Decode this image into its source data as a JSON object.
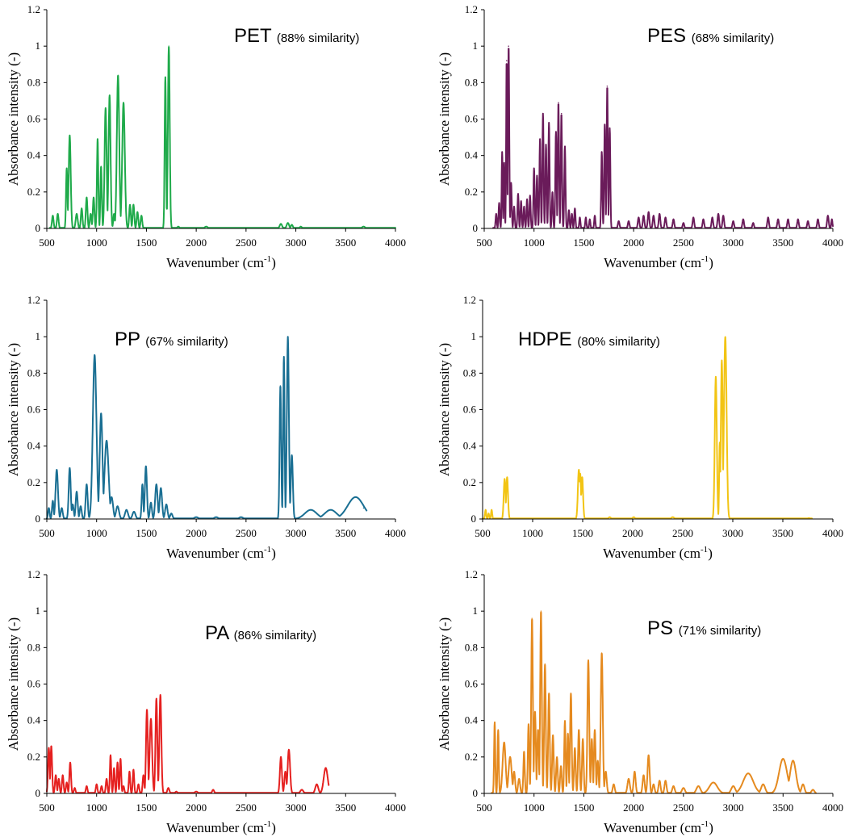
{
  "chart_data": [
    {
      "type": "line",
      "polymer": "PET",
      "similarity": "(88% similarity)",
      "color": "#1faa4a",
      "xlabel": "Wavenumber (cm",
      "xlabel_sup": "-1",
      "xlabel_close": ")",
      "ylabel": "Absorbance intensity (-)",
      "xlim": [
        500,
        4000
      ],
      "ylim": [
        0,
        1.2
      ],
      "xticks": [
        500,
        1000,
        1500,
        2000,
        2500,
        3000,
        3500,
        4000
      ],
      "yticks": [
        0,
        0.2,
        0.4,
        0.6,
        0.8,
        1,
        1.2
      ],
      "peaks": [
        [
          560,
          0.07,
          8
        ],
        [
          610,
          0.08,
          8
        ],
        [
          700,
          0.33,
          7
        ],
        [
          730,
          0.51,
          10
        ],
        [
          800,
          0.08,
          10
        ],
        [
          850,
          0.11,
          8
        ],
        [
          900,
          0.17,
          8
        ],
        [
          940,
          0.08,
          8
        ],
        [
          970,
          0.17,
          8
        ],
        [
          1010,
          0.49,
          7
        ],
        [
          1045,
          0.34,
          7
        ],
        [
          1090,
          0.66,
          10
        ],
        [
          1130,
          0.73,
          10
        ],
        [
          1175,
          0.08,
          8
        ],
        [
          1215,
          0.84,
          12
        ],
        [
          1270,
          0.69,
          13
        ],
        [
          1335,
          0.13,
          8
        ],
        [
          1370,
          0.13,
          8
        ],
        [
          1410,
          0.09,
          8
        ],
        [
          1450,
          0.07,
          8
        ],
        [
          1690,
          0.83,
          7
        ],
        [
          1725,
          1.0,
          9
        ],
        [
          1820,
          0.01,
          10
        ],
        [
          2100,
          0.01,
          15
        ],
        [
          2850,
          0.025,
          12
        ],
        [
          2920,
          0.03,
          12
        ],
        [
          2960,
          0.02,
          10
        ],
        [
          3050,
          0.01,
          10
        ],
        [
          3680,
          0.01,
          15
        ]
      ]
    },
    {
      "type": "line",
      "polymer": "PES",
      "similarity": "(68% similarity)",
      "color": "#6a1b5a",
      "xlabel": "Wavenumber (cm",
      "xlabel_sup": "-1",
      "xlabel_close": ")",
      "ylabel": "Absorbance intensity (-)",
      "xlim": [
        500,
        4000
      ],
      "ylim": [
        0,
        1.2
      ],
      "xticks": [
        500,
        1000,
        1500,
        2000,
        2500,
        3000,
        3500,
        4000
      ],
      "yticks": [
        0,
        0.2,
        0.4,
        0.6,
        0.8,
        1,
        1.2
      ],
      "peaks": [
        [
          620,
          0.08,
          6
        ],
        [
          650,
          0.14,
          6
        ],
        [
          680,
          0.42,
          5
        ],
        [
          700,
          0.36,
          5
        ],
        [
          725,
          0.92,
          5
        ],
        [
          745,
          1.0,
          6
        ],
        [
          770,
          0.25,
          6
        ],
        [
          800,
          0.12,
          6
        ],
        [
          840,
          0.19,
          6
        ],
        [
          870,
          0.15,
          6
        ],
        [
          900,
          0.12,
          6
        ],
        [
          930,
          0.16,
          6
        ],
        [
          960,
          0.18,
          6
        ],
        [
          1000,
          0.33,
          6
        ],
        [
          1030,
          0.29,
          6
        ],
        [
          1060,
          0.49,
          6
        ],
        [
          1090,
          0.63,
          6
        ],
        [
          1120,
          0.46,
          6
        ],
        [
          1150,
          0.58,
          6
        ],
        [
          1185,
          0.2,
          6
        ],
        [
          1220,
          0.53,
          6
        ],
        [
          1245,
          0.69,
          6
        ],
        [
          1275,
          0.63,
          6
        ],
        [
          1310,
          0.45,
          6
        ],
        [
          1350,
          0.1,
          6
        ],
        [
          1380,
          0.08,
          6
        ],
        [
          1410,
          0.11,
          6
        ],
        [
          1460,
          0.06,
          6
        ],
        [
          1520,
          0.06,
          6
        ],
        [
          1560,
          0.05,
          6
        ],
        [
          1610,
          0.07,
          6
        ],
        [
          1680,
          0.42,
          6
        ],
        [
          1710,
          0.57,
          6
        ],
        [
          1735,
          0.78,
          6
        ],
        [
          1760,
          0.55,
          6
        ],
        [
          1850,
          0.04,
          8
        ],
        [
          1950,
          0.04,
          8
        ],
        [
          2050,
          0.06,
          8
        ],
        [
          2100,
          0.07,
          8
        ],
        [
          2150,
          0.09,
          8
        ],
        [
          2200,
          0.07,
          8
        ],
        [
          2260,
          0.08,
          8
        ],
        [
          2320,
          0.06,
          8
        ],
        [
          2400,
          0.05,
          8
        ],
        [
          2500,
          0.03,
          8
        ],
        [
          2600,
          0.06,
          8
        ],
        [
          2700,
          0.05,
          8
        ],
        [
          2790,
          0.06,
          8
        ],
        [
          2850,
          0.08,
          8
        ],
        [
          2900,
          0.07,
          8
        ],
        [
          3000,
          0.04,
          8
        ],
        [
          3100,
          0.05,
          8
        ],
        [
          3200,
          0.03,
          8
        ],
        [
          3350,
          0.06,
          8
        ],
        [
          3450,
          0.05,
          8
        ],
        [
          3550,
          0.05,
          8
        ],
        [
          3650,
          0.05,
          8
        ],
        [
          3750,
          0.04,
          8
        ],
        [
          3850,
          0.05,
          8
        ],
        [
          3950,
          0.07,
          8
        ],
        [
          3990,
          0.05,
          6
        ]
      ]
    },
    {
      "type": "line",
      "polymer": "PP",
      "similarity": "(67% similarity)",
      "color": "#1a6f93",
      "xlabel": "Wavenumber (cm",
      "xlabel_sup": "-1",
      "xlabel_close": ")",
      "ylabel": "Absorbance intensity (-)",
      "xlim": [
        500,
        4000
      ],
      "ylim": [
        0,
        1.2
      ],
      "xticks": [
        500,
        1000,
        1500,
        2000,
        2500,
        3000,
        3500,
        4000
      ],
      "yticks": [
        0,
        0.2,
        0.4,
        0.6,
        0.8,
        1,
        1.2
      ],
      "peaks": [
        [
          520,
          0.06,
          8
        ],
        [
          560,
          0.1,
          8
        ],
        [
          600,
          0.27,
          12
        ],
        [
          650,
          0.06,
          10
        ],
        [
          730,
          0.28,
          10
        ],
        [
          760,
          0.08,
          10
        ],
        [
          800,
          0.15,
          10
        ],
        [
          840,
          0.07,
          10
        ],
        [
          900,
          0.19,
          10
        ],
        [
          980,
          0.9,
          18
        ],
        [
          1045,
          0.58,
          14
        ],
        [
          1100,
          0.43,
          20
        ],
        [
          1150,
          0.12,
          15
        ],
        [
          1210,
          0.07,
          15
        ],
        [
          1300,
          0.05,
          15
        ],
        [
          1375,
          0.04,
          15
        ],
        [
          1460,
          0.19,
          8
        ],
        [
          1495,
          0.29,
          10
        ],
        [
          1545,
          0.09,
          10
        ],
        [
          1600,
          0.19,
          12
        ],
        [
          1645,
          0.17,
          12
        ],
        [
          1700,
          0.08,
          12
        ],
        [
          1750,
          0.03,
          12
        ],
        [
          2000,
          0.01,
          20
        ],
        [
          2200,
          0.01,
          20
        ],
        [
          2450,
          0.01,
          20
        ],
        [
          2845,
          0.73,
          8
        ],
        [
          2880,
          0.89,
          7
        ],
        [
          2920,
          1.0,
          10
        ],
        [
          2960,
          0.35,
          10
        ],
        [
          3150,
          0.05,
          60
        ],
        [
          3350,
          0.05,
          60
        ],
        [
          3600,
          0.12,
          80
        ],
        [
          3680,
          0.06,
          15
        ]
      ]
    },
    {
      "type": "line",
      "polymer": "HDPE",
      "similarity": "(80% similarity)",
      "color": "#f2c414",
      "xlabel": "Wavenumber (cm",
      "xlabel_sup": "-1",
      "xlabel_close": ")",
      "ylabel": "Absorbance intensity (-)",
      "xlim": [
        500,
        4000
      ],
      "ylim": [
        0,
        1.2
      ],
      "xticks": [
        500,
        1000,
        1500,
        2000,
        2500,
        3000,
        3500,
        4000
      ],
      "yticks": [
        0,
        0.2,
        0.4,
        0.6,
        0.8,
        1,
        1.2
      ],
      "peaks": [
        [
          530,
          0.05,
          6
        ],
        [
          560,
          0.03,
          6
        ],
        [
          590,
          0.05,
          6
        ],
        [
          720,
          0.22,
          9
        ],
        [
          745,
          0.23,
          9
        ],
        [
          1462,
          0.27,
          10
        ],
        [
          1475,
          0.25,
          8
        ],
        [
          1495,
          0.23,
          9
        ],
        [
          1770,
          0.01,
          12
        ],
        [
          2010,
          0.01,
          12
        ],
        [
          2400,
          0.01,
          15
        ],
        [
          2830,
          0.78,
          10
        ],
        [
          2870,
          0.42,
          6
        ],
        [
          2890,
          0.87,
          9
        ],
        [
          2925,
          1.0,
          13
        ],
        [
          3760,
          0.005,
          15
        ]
      ]
    },
    {
      "type": "line",
      "polymer": "PA",
      "similarity": "(86% similarity)",
      "color": "#e5201f",
      "xlabel": "Wavenumber (cm",
      "xlabel_sup": "-1",
      "xlabel_close": ")",
      "ylabel": "Absorbance intensity (-)",
      "xlim": [
        500,
        4000
      ],
      "ylim": [
        0,
        1.2
      ],
      "xticks": [
        500,
        1000,
        1500,
        2000,
        2500,
        3000,
        3500,
        4000
      ],
      "yticks": [
        0,
        0.2,
        0.4,
        0.6,
        0.8,
        1,
        1.2
      ],
      "peaks": [
        [
          520,
          0.25,
          8
        ],
        [
          545,
          0.26,
          8
        ],
        [
          590,
          0.1,
          8
        ],
        [
          620,
          0.08,
          8
        ],
        [
          660,
          0.1,
          8
        ],
        [
          700,
          0.06,
          8
        ],
        [
          735,
          0.17,
          8
        ],
        [
          780,
          0.03,
          8
        ],
        [
          900,
          0.04,
          8
        ],
        [
          1000,
          0.05,
          8
        ],
        [
          1050,
          0.04,
          8
        ],
        [
          1100,
          0.08,
          8
        ],
        [
          1140,
          0.21,
          7
        ],
        [
          1175,
          0.14,
          7
        ],
        [
          1210,
          0.17,
          7
        ],
        [
          1240,
          0.19,
          7
        ],
        [
          1270,
          0.04,
          8
        ],
        [
          1330,
          0.12,
          7
        ],
        [
          1370,
          0.13,
          7
        ],
        [
          1420,
          0.05,
          8
        ],
        [
          1470,
          0.1,
          8
        ],
        [
          1505,
          0.46,
          9
        ],
        [
          1545,
          0.41,
          12
        ],
        [
          1600,
          0.52,
          9
        ],
        [
          1640,
          0.54,
          10
        ],
        [
          1720,
          0.03,
          10
        ],
        [
          1800,
          0.01,
          10
        ],
        [
          2000,
          0.01,
          15
        ],
        [
          2170,
          0.02,
          10
        ],
        [
          2850,
          0.2,
          10
        ],
        [
          2895,
          0.12,
          10
        ],
        [
          2930,
          0.24,
          12
        ],
        [
          3060,
          0.02,
          15
        ],
        [
          3210,
          0.05,
          15
        ],
        [
          3300,
          0.14,
          20
        ]
      ]
    },
    {
      "type": "line",
      "polymer": "PS",
      "similarity": "(71% similarity)",
      "color": "#e58a1f",
      "xlabel": "Wavenumber (cm",
      "xlabel_sup": "-1",
      "xlabel_close": ")",
      "ylabel": "Absorbance intensity (-)",
      "xlim": [
        500,
        4000
      ],
      "ylim": [
        0,
        1.2
      ],
      "xticks": [
        500,
        1000,
        1500,
        2000,
        2500,
        3000,
        3500,
        4000
      ],
      "yticks": [
        0,
        0.2,
        0.4,
        0.6,
        0.8,
        1,
        1.2
      ],
      "peaks": [
        [
          605,
          0.39,
          6
        ],
        [
          640,
          0.35,
          6
        ],
        [
          700,
          0.28,
          15
        ],
        [
          760,
          0.2,
          15
        ],
        [
          800,
          0.12,
          10
        ],
        [
          850,
          0.08,
          10
        ],
        [
          900,
          0.23,
          7
        ],
        [
          945,
          0.38,
          7
        ],
        [
          980,
          0.96,
          8
        ],
        [
          1010,
          0.45,
          8
        ],
        [
          1040,
          0.35,
          8
        ],
        [
          1070,
          1.0,
          8
        ],
        [
          1110,
          0.71,
          8
        ],
        [
          1150,
          0.55,
          8
        ],
        [
          1190,
          0.32,
          8
        ],
        [
          1230,
          0.2,
          8
        ],
        [
          1270,
          0.15,
          8
        ],
        [
          1310,
          0.4,
          7
        ],
        [
          1340,
          0.33,
          7
        ],
        [
          1370,
          0.55,
          8
        ],
        [
          1410,
          0.25,
          8
        ],
        [
          1450,
          0.35,
          8
        ],
        [
          1490,
          0.3,
          8
        ],
        [
          1545,
          0.73,
          9
        ],
        [
          1580,
          0.3,
          8
        ],
        [
          1610,
          0.35,
          8
        ],
        [
          1640,
          0.18,
          8
        ],
        [
          1680,
          0.77,
          10
        ],
        [
          1720,
          0.12,
          10
        ],
        [
          1800,
          0.05,
          10
        ],
        [
          1950,
          0.08,
          12
        ],
        [
          2010,
          0.12,
          10
        ],
        [
          2100,
          0.1,
          10
        ],
        [
          2150,
          0.21,
          10
        ],
        [
          2200,
          0.05,
          10
        ],
        [
          2260,
          0.07,
          10
        ],
        [
          2320,
          0.07,
          10
        ],
        [
          2400,
          0.04,
          12
        ],
        [
          2500,
          0.03,
          15
        ],
        [
          2650,
          0.04,
          20
        ],
        [
          2800,
          0.06,
          40
        ],
        [
          3000,
          0.04,
          20
        ],
        [
          3150,
          0.11,
          50
        ],
        [
          3300,
          0.05,
          20
        ],
        [
          3500,
          0.19,
          40
        ],
        [
          3600,
          0.18,
          30
        ],
        [
          3700,
          0.05,
          15
        ],
        [
          3800,
          0.02,
          15
        ]
      ]
    }
  ]
}
